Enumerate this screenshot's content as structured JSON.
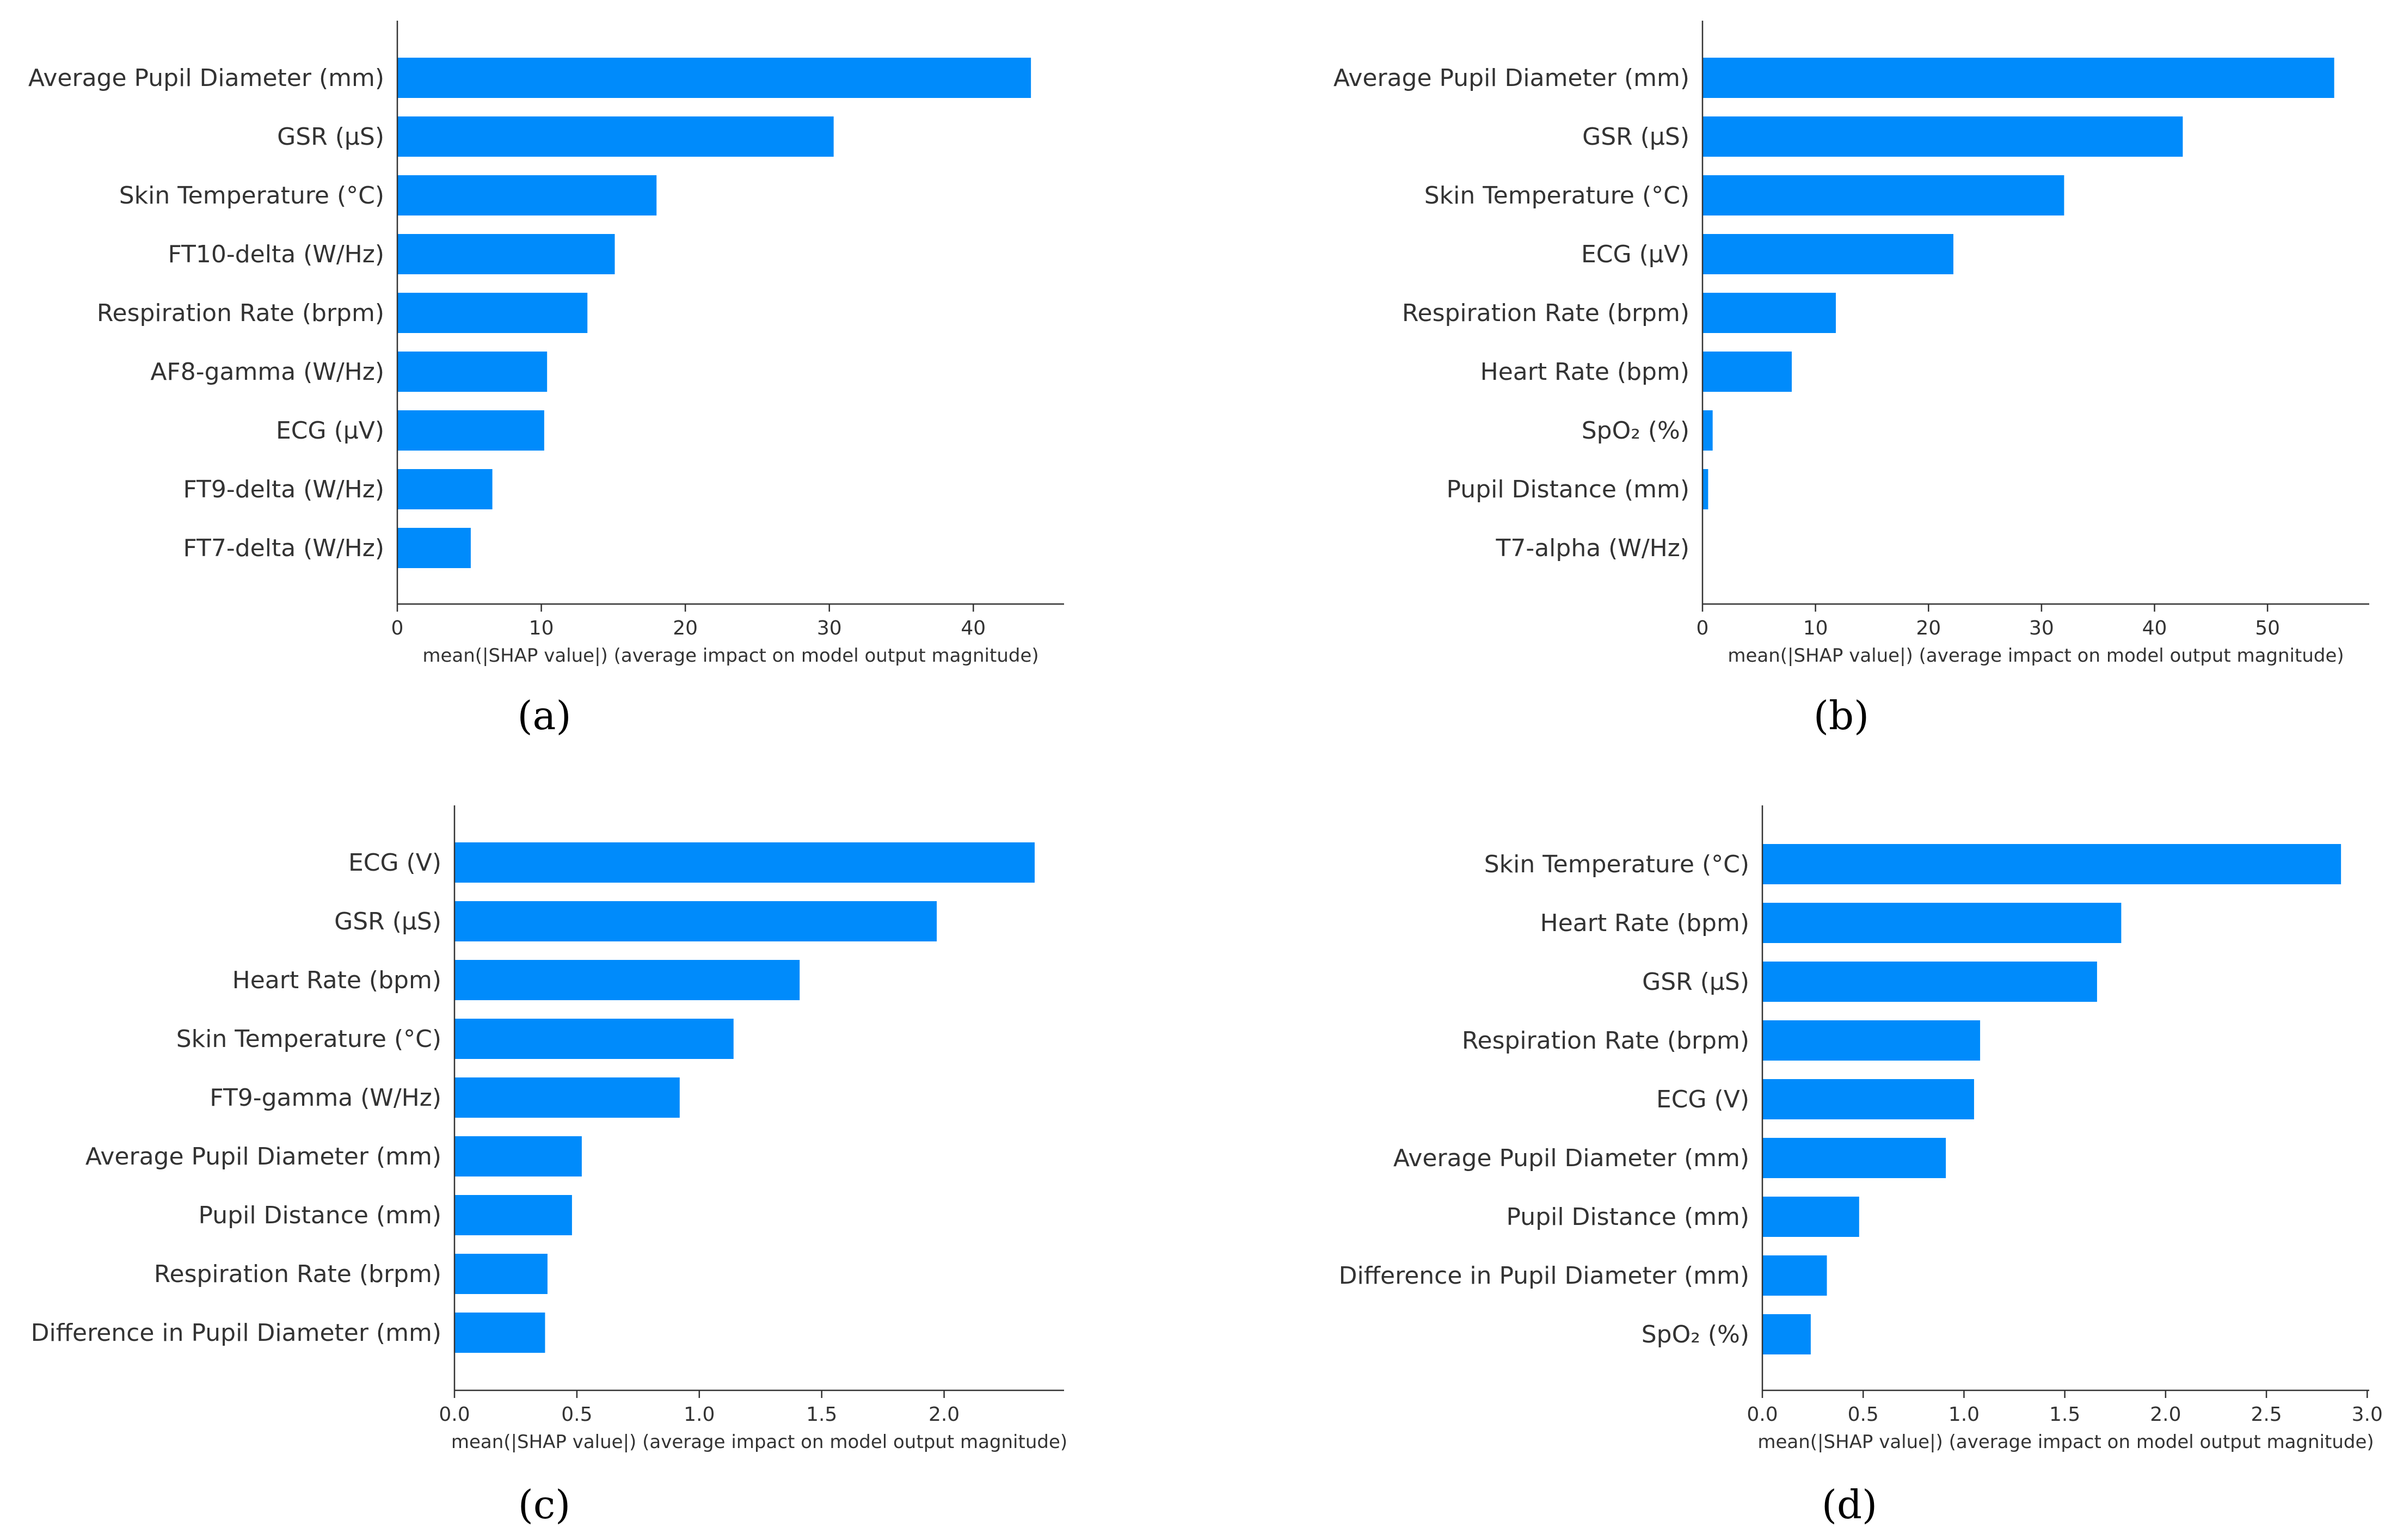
{
  "bar_color": "#008bfb",
  "axis_color": "#333333",
  "chart_data": [
    {
      "type": "bar",
      "orientation": "horizontal",
      "panel_label": "(a)",
      "categories": [
        "Average Pupil Diameter (mm)",
        "GSR (µS)",
        "Skin Temperature (°C)",
        "FT10-delta (W/Hz)",
        "Respiration Rate (brpm)",
        "AF8-gamma (W/Hz)",
        "ECG (µV)",
        "FT9-delta (W/Hz)",
        "FT7-delta (W/Hz)"
      ],
      "values": [
        44.0,
        30.3,
        18.0,
        15.1,
        13.2,
        10.4,
        10.2,
        6.6,
        5.1
      ],
      "xticks": [
        0,
        10,
        20,
        30,
        40
      ],
      "xlim": [
        0,
        46.3
      ],
      "xlabel": "mean(|SHAP value|) (average impact on model output magnitude)"
    },
    {
      "type": "bar",
      "orientation": "horizontal",
      "panel_label": "(b)",
      "categories": [
        "Average Pupil Diameter (mm)",
        "GSR (µS)",
        "Skin Temperature (°C)",
        "ECG (µV)",
        "Respiration Rate (brpm)",
        "Heart Rate (bpm)",
        "SpO₂ (%)",
        "Pupil Distance (mm)",
        "T7-alpha (W/Hz)"
      ],
      "values": [
        55.9,
        42.5,
        32.0,
        22.2,
        11.8,
        7.9,
        0.9,
        0.5,
        0.0
      ],
      "xticks": [
        0,
        10,
        20,
        30,
        40,
        50
      ],
      "xlim": [
        0,
        59.0
      ],
      "xlabel": "mean(|SHAP value|) (average impact on model output magnitude)"
    },
    {
      "type": "bar",
      "orientation": "horizontal",
      "panel_label": "(c)",
      "categories": [
        "ECG (V)",
        "GSR (µS)",
        "Heart Rate (bpm)",
        "Skin Temperature (°C)",
        "FT9-gamma (W/Hz)",
        "Average Pupil Diameter (mm)",
        "Pupil Distance (mm)",
        "Respiration Rate (brpm)",
        "Difference in Pupil Diameter (mm)"
      ],
      "values": [
        2.37,
        1.97,
        1.41,
        1.14,
        0.92,
        0.52,
        0.48,
        0.38,
        0.37
      ],
      "xticks": [
        "0.0",
        "0.5",
        "1.0",
        "1.5",
        "2.0"
      ],
      "xlim": [
        0,
        2.49
      ],
      "xlabel": "mean(|SHAP value|) (average impact on model output magnitude)"
    },
    {
      "type": "bar",
      "orientation": "horizontal",
      "panel_label": "(d)",
      "categories": [
        "Skin Temperature (°C)",
        "Heart Rate (bpm)",
        "GSR (µS)",
        "Respiration Rate (brpm)",
        "ECG (V)",
        "Average Pupil Diameter (mm)",
        "Pupil Distance (mm)",
        "Difference in Pupil Diameter (mm)",
        "SpO₂ (%)"
      ],
      "values": [
        2.87,
        1.78,
        1.66,
        1.08,
        1.05,
        0.91,
        0.48,
        0.32,
        0.24
      ],
      "xticks": [
        "0.0",
        "0.5",
        "1.0",
        "1.5",
        "2.0",
        "2.5",
        "3.0"
      ],
      "xlim": [
        0,
        3.01
      ],
      "xlabel": "mean(|SHAP value|) (average impact on model output magnitude)"
    }
  ]
}
